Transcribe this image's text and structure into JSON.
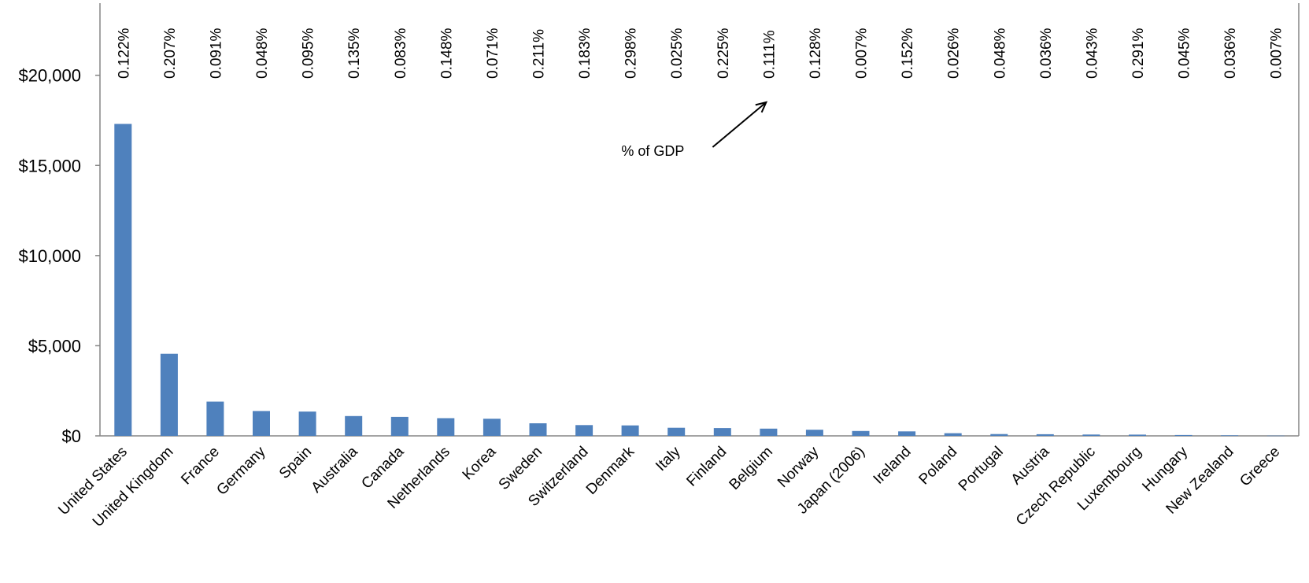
{
  "chart_data": {
    "type": "bar",
    "categories": [
      "United States",
      "United Kingdom",
      "France",
      "Germany",
      "Spain",
      "Australia",
      "Canada",
      "Netherlands",
      "Korea",
      "Sweden",
      "Switzerland",
      "Denmark",
      "Italy",
      "Finland",
      "Belgium",
      "Norway",
      "Japan (2006)",
      "Ireland",
      "Poland",
      "Portugal",
      "Austria",
      "Czech Republic",
      "Luxembourg",
      "Hungary",
      "New Zealand",
      "Greece"
    ],
    "values": [
      17300,
      4550,
      1900,
      1380,
      1350,
      1100,
      1050,
      980,
      950,
      700,
      600,
      580,
      450,
      430,
      400,
      340,
      270,
      250,
      150,
      100,
      90,
      75,
      70,
      50,
      30,
      15
    ],
    "data_labels": [
      "0.122%",
      "0.207%",
      "0.091%",
      "0.048%",
      "0.095%",
      "0.135%",
      "0.083%",
      "0.148%",
      "0.071%",
      "0.211%",
      "0.183%",
      "0.298%",
      "0.025%",
      "0.225%",
      "0.111%",
      "0.128%",
      "0.007%",
      "0.152%",
      "0.026%",
      "0.048%",
      "0.036%",
      "0.043%",
      "0.291%",
      "0.045%",
      "0.036%",
      "0.007%"
    ],
    "yticks": [
      "$0",
      "$5,000",
      "$10,000",
      "$15,000",
      "$20,000"
    ],
    "ytick_values": [
      0,
      5000,
      10000,
      15000,
      20000
    ],
    "ylim": [
      0,
      24000
    ],
    "title": "",
    "xlabel": "",
    "ylabel": "",
    "grid": false,
    "bar_color": "#4f81bd",
    "annotation": {
      "text": "% of GDP",
      "points_to_category": "Belgium"
    }
  }
}
